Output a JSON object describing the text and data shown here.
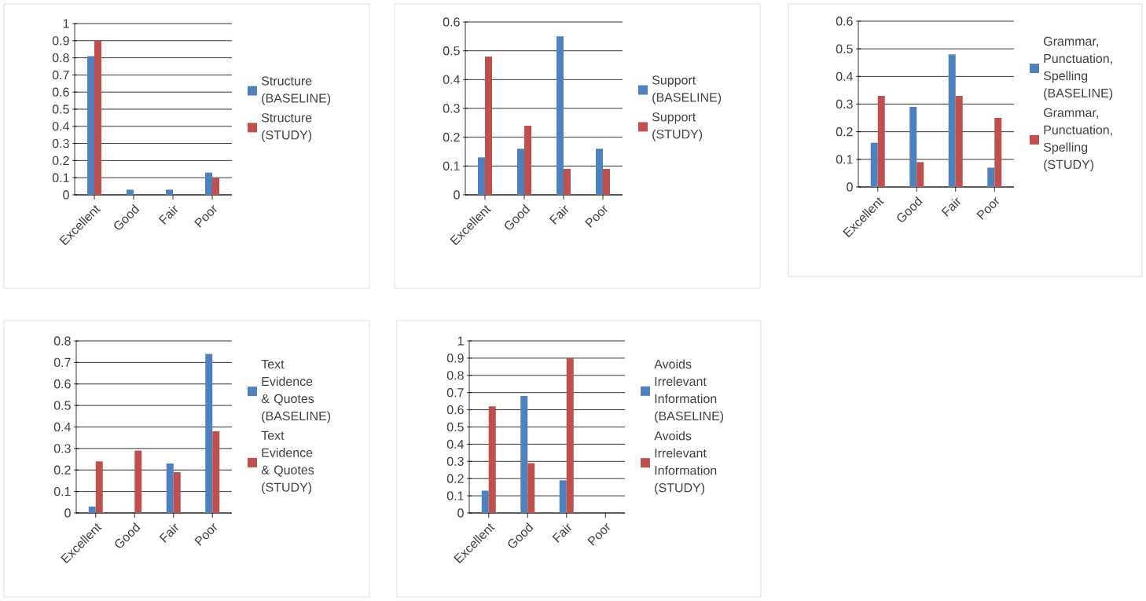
{
  "chart_data": [
    {
      "type": "bar",
      "categories": [
        "Excellent",
        "Good",
        "Fair",
        "Poor"
      ],
      "ylim": [
        0,
        1
      ],
      "yticks": [
        0,
        0.1,
        0.2,
        0.3,
        0.4,
        0.5,
        0.6,
        0.7,
        0.8,
        0.9,
        1
      ],
      "grid": "y",
      "legend": "right",
      "series": [
        {
          "name": "Structure (BASELINE)",
          "color": "#4f81bd",
          "values": [
            0.81,
            0.03,
            0.03,
            0.13
          ]
        },
        {
          "name": "Structure (STUDY)",
          "color": "#c0504d",
          "values": [
            0.9,
            0,
            0,
            0.1
          ]
        }
      ]
    },
    {
      "type": "bar",
      "categories": [
        "Excellent",
        "Good",
        "Fair",
        "Poor"
      ],
      "ylim": [
        0,
        0.6
      ],
      "yticks": [
        0,
        0.1,
        0.2,
        0.3,
        0.4,
        0.5,
        0.6
      ],
      "grid": "y",
      "legend": "right",
      "series": [
        {
          "name": "Support (BASELINE)",
          "color": "#4f81bd",
          "values": [
            0.13,
            0.16,
            0.55,
            0.16
          ]
        },
        {
          "name": "Support (STUDY)",
          "color": "#c0504d",
          "values": [
            0.48,
            0.24,
            0.09,
            0.09
          ]
        }
      ]
    },
    {
      "type": "bar",
      "categories": [
        "Excellent",
        "Good",
        "Fair",
        "Poor"
      ],
      "ylim": [
        0,
        0.6
      ],
      "yticks": [
        0,
        0.1,
        0.2,
        0.3,
        0.4,
        0.5,
        0.6
      ],
      "grid": "y",
      "legend": "right",
      "series": [
        {
          "name": "Grammar, Punctuation, Spelling (BASELINE)",
          "color": "#4f81bd",
          "values": [
            0.16,
            0.29,
            0.48,
            0.07
          ]
        },
        {
          "name": "Grammar, Punctuation, Spelling (STUDY)",
          "color": "#c0504d",
          "values": [
            0.33,
            0.09,
            0.33,
            0.25
          ]
        }
      ]
    },
    {
      "type": "bar",
      "categories": [
        "Excellent",
        "Good",
        "Fair",
        "Poor"
      ],
      "ylim": [
        0,
        0.8
      ],
      "yticks": [
        0,
        0.1,
        0.2,
        0.3,
        0.4,
        0.5,
        0.6,
        0.7,
        0.8
      ],
      "grid": "y",
      "legend": "right",
      "series": [
        {
          "name": "Text Evidence & Quotes (BASELINE)",
          "color": "#4f81bd",
          "values": [
            0.03,
            0,
            0.23,
            0.74
          ]
        },
        {
          "name": "Text Evidence & Quotes (STUDY)",
          "color": "#c0504d",
          "values": [
            0.24,
            0.29,
            0.19,
            0.38
          ]
        }
      ]
    },
    {
      "type": "bar",
      "categories": [
        "Excellent",
        "Good",
        "Fair",
        "Poor"
      ],
      "ylim": [
        0,
        1
      ],
      "yticks": [
        0,
        0.1,
        0.2,
        0.3,
        0.4,
        0.5,
        0.6,
        0.7,
        0.8,
        0.9,
        1
      ],
      "grid": "y",
      "legend": "right",
      "series": [
        {
          "name": "Avoids Irrelevant Information (BASELINE)",
          "color": "#4f81bd",
          "values": [
            0.13,
            0.68,
            0.19,
            0
          ]
        },
        {
          "name": "Avoids Irrelevant Information (STUDY)",
          "color": "#c0504d",
          "values": [
            0.62,
            0.29,
            0.9,
            0
          ]
        }
      ]
    }
  ]
}
